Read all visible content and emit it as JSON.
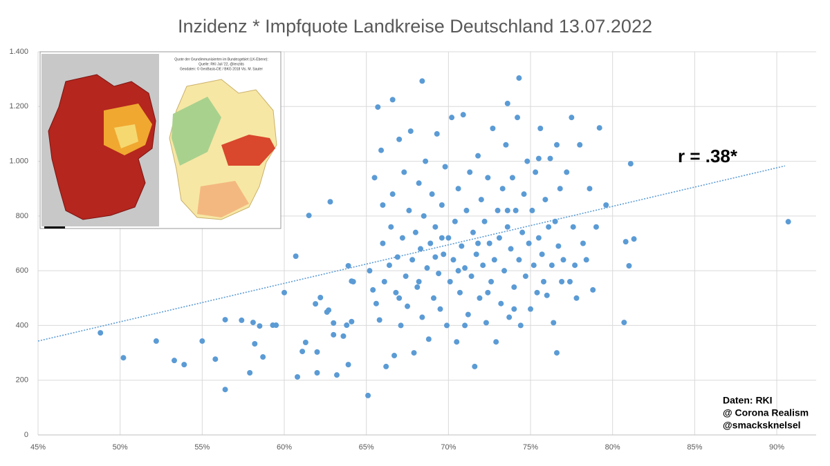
{
  "chart_data": {
    "type": "scatter",
    "title": "Inzidenz * Impfquote Landkreise Deutschland 13.07.2022",
    "color": "#5b9bd5",
    "grid": true,
    "xlim": [
      45,
      92.4
    ],
    "ylim": [
      0,
      1400
    ],
    "xticks": [
      {
        "value": 45,
        "label": "45%"
      },
      {
        "value": 50,
        "label": "50%"
      },
      {
        "value": 55,
        "label": "55%"
      },
      {
        "value": 60,
        "label": "60%"
      },
      {
        "value": 65,
        "label": "65%"
      },
      {
        "value": 70,
        "label": "70%"
      },
      {
        "value": 75,
        "label": "75%"
      },
      {
        "value": 80,
        "label": "80%"
      },
      {
        "value": 85,
        "label": "85%"
      },
      {
        "value": 90,
        "label": "90%"
      }
    ],
    "yticks": [
      0,
      200,
      400,
      600,
      800,
      {
        "value": 1000,
        "label": "1.000"
      },
      {
        "value": 1200,
        "label": "1.200"
      },
      {
        "value": 1400,
        "label": "1.400"
      }
    ],
    "x": [
      48.8,
      50.2,
      52.2,
      53.3,
      53.9,
      55.0,
      55.8,
      56.4,
      56.4,
      57.4,
      57.9,
      58.1,
      58.2,
      58.5,
      58.7,
      59.3,
      59.5,
      60.0,
      60.7,
      60.8,
      61.1,
      61.3,
      61.5,
      61.9,
      62.0,
      62.0,
      62.2,
      62.6,
      62.7,
      62.8,
      63.0,
      63.0,
      63.2,
      63.6,
      63.8,
      63.9,
      63.9,
      64.1,
      64.2,
      64.1,
      65.1,
      65.7,
      66.6,
      68.4,
      74.3,
      73.6,
      80.7,
      80.8,
      81.0,
      81.1,
      81.3,
      90.7,
      79.2,
      79.6,
      65.2,
      65.4,
      65.5,
      65.6,
      65.8,
      65.9,
      66.0,
      66.1,
      66.2,
      66.4,
      66.5,
      66.6,
      66.7,
      66.8,
      66.9,
      67.0,
      67.1,
      67.2,
      67.3,
      67.4,
      67.5,
      67.6,
      67.7,
      67.8,
      67.9,
      68.0,
      68.1,
      68.2,
      68.3,
      68.4,
      68.5,
      68.6,
      68.7,
      68.8,
      68.9,
      69.0,
      69.1,
      69.2,
      69.3,
      69.4,
      69.5,
      69.6,
      69.7,
      69.8,
      69.9,
      70.0,
      70.1,
      70.2,
      70.3,
      70.4,
      70.5,
      70.6,
      70.7,
      70.8,
      70.9,
      71.0,
      71.1,
      71.2,
      71.3,
      71.4,
      71.5,
      71.6,
      71.7,
      71.8,
      71.9,
      72.0,
      72.1,
      72.2,
      72.3,
      72.4,
      72.5,
      72.6,
      72.7,
      72.8,
      72.9,
      73.0,
      73.1,
      73.2,
      73.3,
      73.4,
      73.5,
      73.6,
      73.7,
      73.8,
      73.9,
      74.0,
      74.1,
      74.2,
      74.3,
      74.4,
      74.5,
      74.6,
      74.7,
      74.8,
      74.9,
      75.0,
      75.1,
      75.2,
      75.3,
      75.4,
      75.5,
      75.6,
      75.7,
      75.8,
      75.9,
      76.0,
      76.1,
      76.2,
      76.3,
      76.4,
      76.5,
      76.6,
      76.7,
      76.8,
      76.9,
      77.0,
      77.2,
      77.4,
      77.6,
      77.8,
      78.0,
      78.2,
      78.4,
      78.6,
      78.8,
      79.0,
      77.5,
      77.7,
      76.6,
      75.5,
      69.2,
      70.6,
      71.8,
      72.4,
      73.6,
      68.2,
      67.0,
      66.0,
      71.0,
      74.0,
      69.6
    ],
    "values": [
      373,
      282,
      343,
      272,
      257,
      343,
      277,
      421,
      166,
      419,
      227,
      411,
      333,
      398,
      285,
      401,
      401,
      520,
      653,
      212,
      305,
      338,
      802,
      479,
      227,
      303,
      502,
      449,
      456,
      852,
      409,
      366,
      219,
      361,
      401,
      257,
      618,
      562,
      560,
      414,
      144,
      1198,
      1225,
      1293,
      1304,
      1211,
      411,
      706,
      618,
      991,
      716,
      779,
      1122,
      840,
      600,
      530,
      940,
      480,
      420,
      1040,
      700,
      560,
      250,
      620,
      760,
      880,
      290,
      520,
      650,
      1080,
      400,
      720,
      960,
      580,
      470,
      820,
      1110,
      640,
      300,
      740,
      540,
      920,
      680,
      430,
      800,
      1000,
      610,
      350,
      700,
      880,
      500,
      760,
      1100,
      590,
      460,
      840,
      660,
      980,
      400,
      720,
      560,
      1160,
      640,
      780,
      340,
      900,
      520,
      690,
      1170,
      610,
      820,
      440,
      960,
      580,
      740,
      250,
      660,
      1020,
      500,
      860,
      620,
      780,
      410,
      940,
      700,
      560,
      1120,
      640,
      340,
      820,
      720,
      480,
      900,
      600,
      1060,
      760,
      430,
      680,
      940,
      540,
      820,
      1160,
      640,
      400,
      740,
      880,
      580,
      1000,
      700,
      460,
      820,
      620,
      960,
      520,
      720,
      1120,
      660,
      560,
      860,
      510,
      760,
      1010,
      620,
      410,
      780,
      300,
      690,
      900,
      560,
      640,
      960,
      560,
      760,
      500,
      1060,
      700,
      640,
      900,
      530,
      760,
      1160,
      620,
      1060,
      1010,
      650,
      600,
      700,
      520,
      820,
      560,
      500,
      840,
      400,
      460,
      720
    ],
    "trendline": {
      "x": [
        45,
        90.5
      ],
      "y": [
        343,
        983
      ]
    },
    "annotation": "r = .38*",
    "source": [
      "Daten: RKI",
      "@ Corona Realism",
      "@smacksknelsel"
    ],
    "inset_text": [
      "Quote der Grundimmunisierten im Bundesgebiet (LK-Ebene):",
      "Quelle: RKI Juli '22, @lenzlds",
      "Geodaten: © GeoBasis-DE / BKG 2018 Vis. M. Sauter"
    ]
  }
}
